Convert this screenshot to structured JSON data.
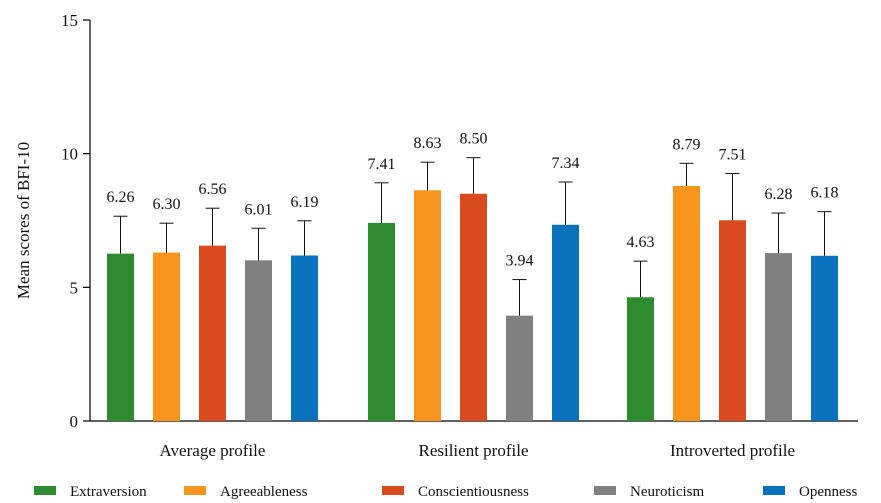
{
  "chart_data": {
    "type": "bar",
    "ylabel": "Mean scores of BFI-10",
    "xlabel": "",
    "ylim": [
      0,
      15
    ],
    "yticks": [
      0,
      5,
      10,
      15
    ],
    "grid": false,
    "legend_position": "bottom",
    "categories": [
      "Average profile",
      "Resilient profile",
      "Introverted profile"
    ],
    "series": [
      {
        "name": "Extraversion",
        "color": "#2e8b30",
        "values": [
          6.26,
          7.41,
          4.63
        ],
        "labels": [
          "6.26",
          "7.41",
          "4.63"
        ],
        "error": [
          1.4,
          1.5,
          1.35
        ]
      },
      {
        "name": "Agreeableness",
        "color": "#f7941d",
        "values": [
          6.3,
          8.63,
          8.79
        ],
        "labels": [
          "6.30",
          "8.63",
          "8.79"
        ],
        "error": [
          1.1,
          1.05,
          0.85
        ]
      },
      {
        "name": "Conscientiousness",
        "color": "#d94a1e",
        "values": [
          6.56,
          8.5,
          7.51
        ],
        "labels": [
          "6.56",
          "8.50",
          "7.51"
        ],
        "error": [
          1.4,
          1.35,
          1.75
        ]
      },
      {
        "name": "Neuroticism",
        "color": "#808080",
        "values": [
          6.01,
          3.94,
          6.28
        ],
        "labels": [
          "6.01",
          "3.94",
          "6.28"
        ],
        "error": [
          1.2,
          1.35,
          1.5
        ]
      },
      {
        "name": "Openness",
        "color": "#0a71bd",
        "values": [
          6.19,
          7.34,
          6.18
        ],
        "labels": [
          "6.19",
          "7.34",
          "6.18"
        ],
        "error": [
          1.3,
          1.6,
          1.65
        ]
      }
    ]
  }
}
